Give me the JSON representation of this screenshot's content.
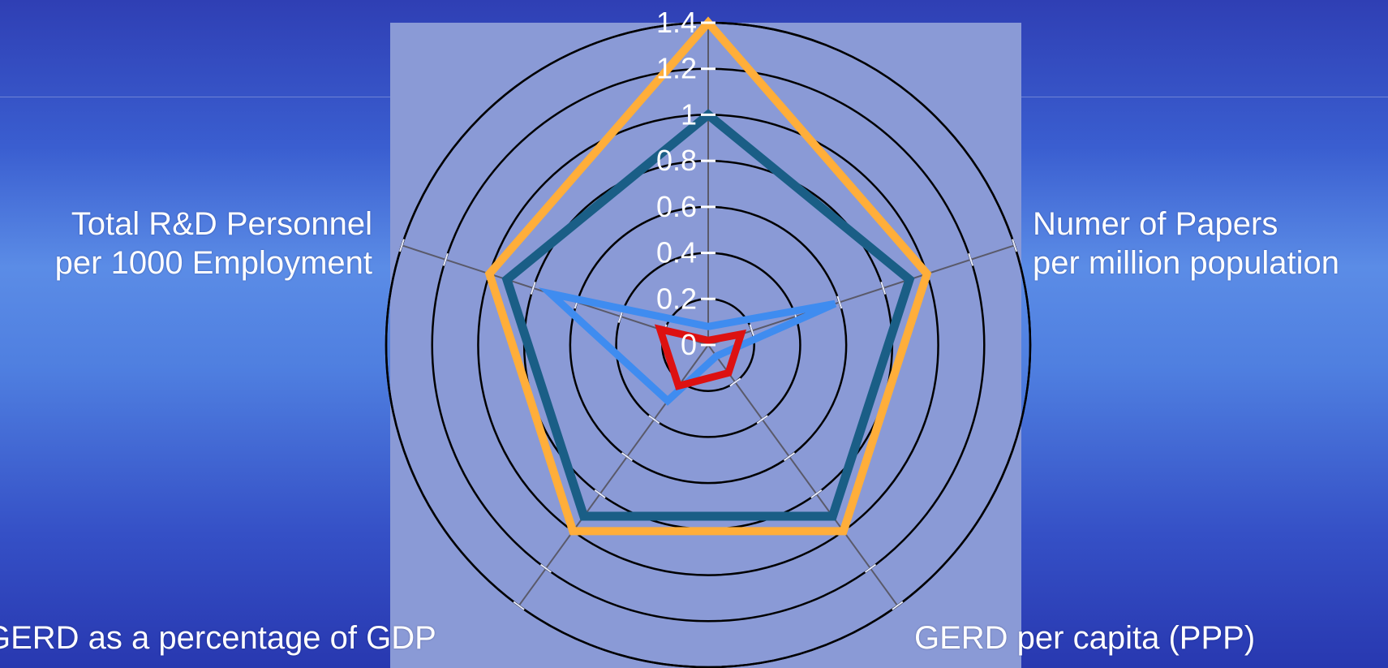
{
  "colors": {
    "background_top": "#2f3fb4",
    "plot_area": "#8a9ad6",
    "ring": "#000000",
    "spoke": "#5a5a6a"
  },
  "chart_data": {
    "type": "radar",
    "title": "",
    "axes": [
      "Numer of Papers\nper million population",
      "GERD per capita (PPP)",
      "GERD as a percentage of GDP",
      "Total R&D Personnel\nper 1000 Employment"
    ],
    "axis_labels": {
      "papers": [
        "Numer of Papers",
        "per million population"
      ],
      "gerd_per_capita": "GERD per capita (PPP)",
      "gerd_pct_gdp": "GERD as a percentage of GDP",
      "personnel": [
        "Total R&D Personnel",
        "per 1000 Employment"
      ]
    },
    "radial_ticks": [
      "0",
      "0.2",
      "0.4",
      "0.6",
      "0.8",
      "1",
      "1.2",
      "1.4"
    ],
    "rmin": 0,
    "rmax": 1.4,
    "grid": true,
    "spoke_order": [
      "top",
      "papers",
      "gerd_per_capita",
      "gerd_pct_gdp",
      "personnel"
    ],
    "series": [
      {
        "color": "#ffae3a",
        "stroke": 10,
        "values": [
          1.4,
          1.0,
          1.0,
          1.0,
          1.0
        ]
      },
      {
        "color": "#1a5e86",
        "stroke": 11,
        "values": [
          1.0,
          0.92,
          0.92,
          0.92,
          0.92
        ]
      },
      {
        "color": "#3f8cf0",
        "stroke": 9,
        "values": [
          0.08,
          0.58,
          0.06,
          0.3,
          0.72
        ]
      },
      {
        "color": "#dd1111",
        "stroke": 9,
        "values": [
          0.02,
          0.15,
          0.15,
          0.22,
          0.22
        ]
      }
    ]
  }
}
